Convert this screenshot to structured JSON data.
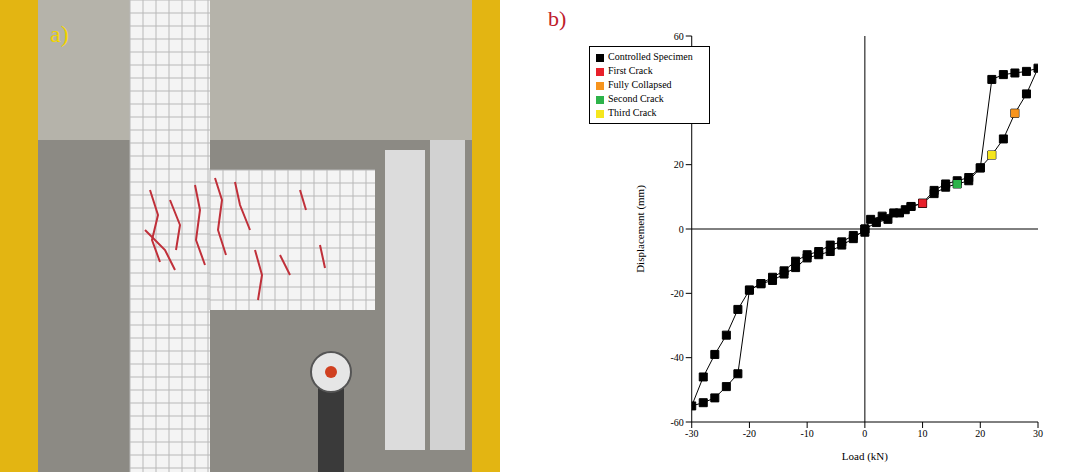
{
  "photo_label": "a)",
  "chart_data": {
    "type": "scatter",
    "panel_label": "b)",
    "x_label": "Load (kN)",
    "y_label": "Displacement (mm)",
    "xlim": [
      -30,
      30
    ],
    "xticks": [
      -30,
      -20,
      -10,
      0,
      10,
      20,
      30
    ],
    "ylim": [
      -60,
      60
    ],
    "yticks": [
      -60,
      -40,
      -20,
      0,
      20,
      40,
      60
    ],
    "grid": false,
    "legend": "upper left",
    "series": [
      {
        "name": "Controlled Specimen",
        "type": "line",
        "color": "#000000",
        "marker": "square",
        "x": [
          0,
          1,
          3,
          5,
          7,
          8,
          10,
          12,
          14,
          16,
          18,
          20,
          22,
          24,
          26,
          28,
          30,
          28,
          26,
          24,
          22,
          20,
          18,
          16,
          14,
          12,
          10,
          8,
          6,
          4,
          2,
          0,
          -2,
          -4,
          -6,
          -8,
          -10,
          -12,
          -14,
          -16,
          -18,
          -20,
          -22,
          -24,
          -26,
          -28,
          -30,
          -28,
          -26,
          -24,
          -22,
          -20,
          -18,
          -16,
          -14,
          -12,
          -10,
          -8,
          -6,
          -4,
          -2,
          0
        ],
        "values": [
          0,
          3,
          4,
          5,
          6,
          7,
          8,
          12,
          14,
          15,
          16,
          19,
          23,
          28,
          36,
          42,
          50,
          49,
          48.5,
          48,
          46.5,
          19,
          15,
          14,
          13,
          11,
          8,
          7,
          5,
          3,
          2,
          0,
          -3,
          -5,
          -7,
          -8,
          -9,
          -12,
          -14,
          -16,
          -17,
          -19,
          -25,
          -33,
          -39,
          -46,
          -55,
          -54,
          -52.5,
          -49,
          -45,
          -19,
          -17,
          -15,
          -13,
          -10,
          -8,
          -7,
          -5,
          -4,
          -2,
          -1
        ]
      },
      {
        "name": "First Crack",
        "type": "scatter",
        "color": "#e8202a",
        "marker": "square",
        "x": [
          10
        ],
        "values": [
          8
        ]
      },
      {
        "name": "Second Crack",
        "type": "scatter",
        "color": "#2db34a",
        "marker": "square",
        "x": [
          16
        ],
        "values": [
          14
        ]
      },
      {
        "name": "Third Crack",
        "type": "scatter",
        "color": "#f5e61e",
        "marker": "square",
        "x": [
          22
        ],
        "values": [
          23
        ]
      },
      {
        "name": "Fully Collapsed",
        "type": "scatter",
        "color": "#f7941d",
        "marker": "square",
        "x": [
          26
        ],
        "values": [
          36
        ]
      }
    ]
  }
}
